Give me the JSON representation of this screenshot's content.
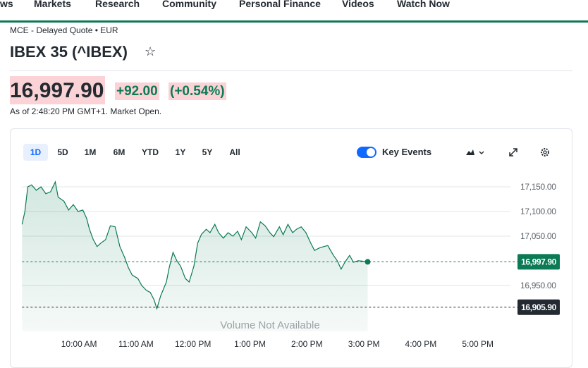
{
  "nav": [
    "ws",
    "Markets",
    "Research",
    "Community",
    "Personal Finance",
    "Videos",
    "Watch Now"
  ],
  "quote_source": "MCE - Delayed Quote • EUR",
  "title": "IBEX 35 (^IBEX)",
  "price": "16,997.90",
  "change": "+92.00",
  "change_percent": "(+0.54%)",
  "as_of": "As of 2:48:20 PM GMT+1. Market Open.",
  "ranges": [
    "1D",
    "5D",
    "1M",
    "6M",
    "YTD",
    "1Y",
    "5Y",
    "All"
  ],
  "key_events": "Key Events",
  "chart_data": {
    "type": "line",
    "x": [
      540,
      543,
      546,
      550,
      555,
      560,
      565,
      570,
      575,
      578,
      584,
      589,
      594,
      599,
      604,
      608,
      611,
      615,
      619,
      623,
      628,
      633,
      638,
      643,
      648,
      652,
      656,
      662,
      666,
      671,
      675,
      679,
      682,
      686,
      692,
      695,
      699,
      703,
      707,
      712,
      716,
      721,
      725,
      729,
      734,
      738,
      743,
      747,
      752,
      757,
      762,
      767,
      771,
      776,
      782,
      786,
      791,
      796,
      801,
      805,
      811,
      815,
      820,
      825,
      829,
      834,
      839,
      844,
      848,
      853,
      858,
      862,
      868,
      872,
      876,
      880,
      885,
      889,
      894,
      900,
      904
    ],
    "series": [
      {
        "color": "#0b7a55",
        "values": [
          17074,
          17100,
          17150,
          17154,
          17143,
          17150,
          17136,
          17140,
          17160,
          17129,
          17121,
          17103,
          17114,
          17100,
          17103,
          17086,
          17064,
          17043,
          17029,
          17036,
          17043,
          17071,
          17069,
          17029,
          17007,
          16986,
          16971,
          16964,
          16950,
          16940,
          16936,
          16921,
          16903,
          16929,
          16957,
          16986,
          17017,
          17000,
          16989,
          16964,
          16957,
          16989,
          17036,
          17054,
          17064,
          17057,
          17074,
          17057,
          17046,
          17057,
          17050,
          17060,
          17043,
          17069,
          17057,
          17046,
          17079,
          17071,
          17057,
          17049,
          17069,
          17053,
          17074,
          17057,
          17064,
          17069,
          17057,
          17036,
          17021,
          17026,
          17029,
          17031,
          17011,
          17000,
          16983,
          16997,
          17011,
          16997,
          17000,
          16999,
          16997.9
        ]
      }
    ],
    "xlim": [
      540,
      1052
    ],
    "ylim": [
      16857,
      17164
    ],
    "xticks": [
      {
        "value": 600,
        "label": "10:00 AM"
      },
      {
        "value": 660,
        "label": "11:00 AM"
      },
      {
        "value": 720,
        "label": "12:00 PM"
      },
      {
        "value": 780,
        "label": "1:00 PM"
      },
      {
        "value": 840,
        "label": "2:00 PM"
      },
      {
        "value": 900,
        "label": "3:00 PM"
      },
      {
        "value": 960,
        "label": "4:00 PM"
      },
      {
        "value": 1020,
        "label": "5:00 PM"
      }
    ],
    "yticks": [
      {
        "value": 16950,
        "label": "16,950.00"
      },
      {
        "value": 17050,
        "label": "17,050.00"
      },
      {
        "value": 17100,
        "label": "17,100.00"
      },
      {
        "value": 17150,
        "label": "17,150.00"
      }
    ],
    "grid": true,
    "reference_lines": [
      {
        "value": 16997.9,
        "label": "16,997.90",
        "color": "#0b7a55"
      },
      {
        "value": 16905.9,
        "label": "16,905.90",
        "color": "#232a31"
      }
    ],
    "annotation": "Volume Not Available"
  }
}
